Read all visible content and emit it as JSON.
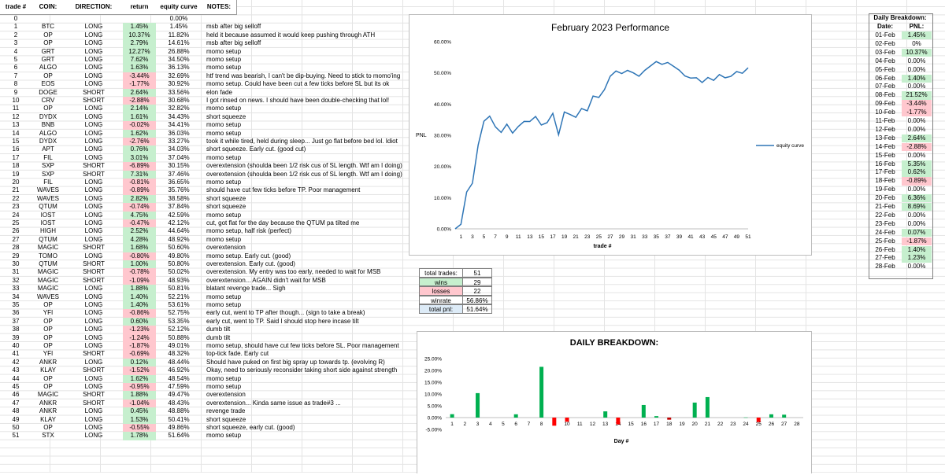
{
  "headers": {
    "trade": "trade #",
    "coin": "COIN:",
    "direction": "DIRECTION:",
    "return": "return",
    "equity": "equity curve",
    "notes": "NOTES:"
  },
  "trades": [
    {
      "n": "0",
      "coin": "",
      "dir": "",
      "ret": "",
      "eq": "0.00%",
      "note": "",
      "color": ""
    },
    {
      "n": "1",
      "coin": "BTC",
      "dir": "LONG",
      "ret": "1.45%",
      "eq": "1.45%",
      "note": "msb after big selloff",
      "color": "green"
    },
    {
      "n": "2",
      "coin": "OP",
      "dir": "LONG",
      "ret": "10.37%",
      "eq": "11.82%",
      "note": "held it because assumed it would keep pushing through ATH",
      "color": "green"
    },
    {
      "n": "3",
      "coin": "OP",
      "dir": "LONG",
      "ret": "2.79%",
      "eq": "14.61%",
      "note": "msb after big selloff",
      "color": "green"
    },
    {
      "n": "4",
      "coin": "GRT",
      "dir": "LONG",
      "ret": "12.27%",
      "eq": "26.88%",
      "note": "momo setup",
      "color": "green"
    },
    {
      "n": "5",
      "coin": "GRT",
      "dir": "LONG",
      "ret": "7.62%",
      "eq": "34.50%",
      "note": "momo setup",
      "color": "green"
    },
    {
      "n": "6",
      "coin": "ALGO",
      "dir": "LONG",
      "ret": "1.63%",
      "eq": "36.13%",
      "note": "momo setup",
      "color": "green"
    },
    {
      "n": "7",
      "coin": "OP",
      "dir": "LONG",
      "ret": "-3.44%",
      "eq": "32.69%",
      "note": "htf trend was bearish, I can't be dip-buying. Need to stick to momo'ing",
      "color": "red"
    },
    {
      "n": "8",
      "coin": "EOS",
      "dir": "LONG",
      "ret": "-1.77%",
      "eq": "30.92%",
      "note": "momo setup. Could have been cut a few ticks before SL but its ok",
      "color": "red"
    },
    {
      "n": "9",
      "coin": "DOGE",
      "dir": "SHORT",
      "ret": "2.64%",
      "eq": "33.56%",
      "note": "elon fade",
      "color": "green"
    },
    {
      "n": "10",
      "coin": "CRV",
      "dir": "SHORT",
      "ret": "-2.88%",
      "eq": "30.68%",
      "note": "I got rinsed on news. I should have been double-checking that lol!",
      "color": "red"
    },
    {
      "n": "11",
      "coin": "OP",
      "dir": "LONG",
      "ret": "2.14%",
      "eq": "32.82%",
      "note": "momo setup",
      "color": "green"
    },
    {
      "n": "12",
      "coin": "DYDX",
      "dir": "LONG",
      "ret": "1.61%",
      "eq": "34.43%",
      "note": "short squeeze",
      "color": "green"
    },
    {
      "n": "13",
      "coin": "BNB",
      "dir": "LONG",
      "ret": "-0.02%",
      "eq": "34.41%",
      "note": "momo setup",
      "color": "red"
    },
    {
      "n": "14",
      "coin": "ALGO",
      "dir": "LONG",
      "ret": "1.62%",
      "eq": "36.03%",
      "note": "momo setup",
      "color": "green"
    },
    {
      "n": "15",
      "coin": "DYDX",
      "dir": "LONG",
      "ret": "-2.76%",
      "eq": "33.27%",
      "note": "took it while tired, held during sleep... Just go flat before bed lol. Idiot",
      "color": "red"
    },
    {
      "n": "16",
      "coin": "APT",
      "dir": "LONG",
      "ret": "0.76%",
      "eq": "34.03%",
      "note": "short squeeze. Early cut. (good cut)",
      "color": "green"
    },
    {
      "n": "17",
      "coin": "FIL",
      "dir": "LONG",
      "ret": "3.01%",
      "eq": "37.04%",
      "note": "momo setup",
      "color": "green"
    },
    {
      "n": "18",
      "coin": "SXP",
      "dir": "SHORT",
      "ret": "-6.89%",
      "eq": "30.15%",
      "note": "overextension (shoulda been 1/2 risk cus of SL length. Wtf am I doing)",
      "color": "red"
    },
    {
      "n": "19",
      "coin": "SXP",
      "dir": "SHORT",
      "ret": "7.31%",
      "eq": "37.46%",
      "note": "overextension (shoulda been 1/2 risk cus of SL length. Wtf am I doing)",
      "color": "green"
    },
    {
      "n": "20",
      "coin": "FIL",
      "dir": "LONG",
      "ret": "-0.81%",
      "eq": "36.65%",
      "note": "momo setup",
      "color": "red"
    },
    {
      "n": "21",
      "coin": "WAVES",
      "dir": "LONG",
      "ret": "-0.89%",
      "eq": "35.76%",
      "note": "should have cut few ticks before TP. Poor management",
      "color": "red"
    },
    {
      "n": "22",
      "coin": "WAVES",
      "dir": "LONG",
      "ret": "2.82%",
      "eq": "38.58%",
      "note": "short squeeze",
      "color": "green"
    },
    {
      "n": "23",
      "coin": "QTUM",
      "dir": "LONG",
      "ret": "-0.74%",
      "eq": "37.84%",
      "note": "short squeeze",
      "color": "red"
    },
    {
      "n": "24",
      "coin": "IOST",
      "dir": "LONG",
      "ret": "4.75%",
      "eq": "42.59%",
      "note": "momo setup",
      "color": "green"
    },
    {
      "n": "25",
      "coin": "IOST",
      "dir": "LONG",
      "ret": "-0.47%",
      "eq": "42.12%",
      "note": "cut, got flat for the day because the QTUM pa tilted me",
      "color": "red"
    },
    {
      "n": "26",
      "coin": "HIGH",
      "dir": "LONG",
      "ret": "2.52%",
      "eq": "44.64%",
      "note": "momo setup, half risk (perfect)",
      "color": "green"
    },
    {
      "n": "27",
      "coin": "QTUM",
      "dir": "LONG",
      "ret": "4.28%",
      "eq": "48.92%",
      "note": "momo setup",
      "color": "green"
    },
    {
      "n": "28",
      "coin": "MAGIC",
      "dir": "SHORT",
      "ret": "1.68%",
      "eq": "50.60%",
      "note": "overextension",
      "color": "green"
    },
    {
      "n": "29",
      "coin": "TOMO",
      "dir": "LONG",
      "ret": "-0.80%",
      "eq": "49.80%",
      "note": "momo setup. Early cut. (good)",
      "color": "red"
    },
    {
      "n": "30",
      "coin": "QTUM",
      "dir": "SHORT",
      "ret": "1.00%",
      "eq": "50.80%",
      "note": "overextension. Early cut. (good)",
      "color": "green"
    },
    {
      "n": "31",
      "coin": "MAGIC",
      "dir": "SHORT",
      "ret": "-0.78%",
      "eq": "50.02%",
      "note": "overextension. My entry was too early, needed to wait for MSB",
      "color": "red"
    },
    {
      "n": "32",
      "coin": "MAGIC",
      "dir": "SHORT",
      "ret": "-1.09%",
      "eq": "48.93%",
      "note": "overextension... AGAIN didn't wait for MSB",
      "color": "red"
    },
    {
      "n": "33",
      "coin": "MAGIC",
      "dir": "LONG",
      "ret": "1.88%",
      "eq": "50.81%",
      "note": "blatant revenge trade... Sigh",
      "color": "green"
    },
    {
      "n": "34",
      "coin": "WAVES",
      "dir": "LONG",
      "ret": "1.40%",
      "eq": "52.21%",
      "note": "momo setup",
      "color": "green"
    },
    {
      "n": "35",
      "coin": "OP",
      "dir": "LONG",
      "ret": "1.40%",
      "eq": "53.61%",
      "note": "momo setup",
      "color": "green"
    },
    {
      "n": "36",
      "coin": "YFI",
      "dir": "LONG",
      "ret": "-0.86%",
      "eq": "52.75%",
      "note": "early cut, went to TP after though... (sign to take a break)",
      "color": "red"
    },
    {
      "n": "37",
      "coin": "OP",
      "dir": "LONG",
      "ret": "0.60%",
      "eq": "53.35%",
      "note": "early cut, went to TP. Said I should stop here incase tilt",
      "color": "green"
    },
    {
      "n": "38",
      "coin": "OP",
      "dir": "LONG",
      "ret": "-1.23%",
      "eq": "52.12%",
      "note": "dumb tilt",
      "color": "red"
    },
    {
      "n": "39",
      "coin": "OP",
      "dir": "LONG",
      "ret": "-1.24%",
      "eq": "50.88%",
      "note": "dumb tilt",
      "color": "red"
    },
    {
      "n": "40",
      "coin": "OP",
      "dir": "LONG",
      "ret": "-1.87%",
      "eq": "49.01%",
      "note": "momo setup, should have cut few ticks before SL. Poor management",
      "color": "red"
    },
    {
      "n": "41",
      "coin": "YFI",
      "dir": "SHORT",
      "ret": "-0.69%",
      "eq": "48.32%",
      "note": "top-tick fade. Early cut",
      "color": "red"
    },
    {
      "n": "42",
      "coin": "ANKR",
      "dir": "LONG",
      "ret": "0.12%",
      "eq": "48.44%",
      "note": "Should have puked on first big spray up towards tp. (evolving R)",
      "color": "green"
    },
    {
      "n": "43",
      "coin": "KLAY",
      "dir": "SHORT",
      "ret": "-1.52%",
      "eq": "46.92%",
      "note": "Okay, need to seriously reconsider taking short side against strength",
      "color": "red"
    },
    {
      "n": "44",
      "coin": "OP",
      "dir": "LONG",
      "ret": "1.62%",
      "eq": "48.54%",
      "note": "momo setup",
      "color": "green"
    },
    {
      "n": "45",
      "coin": "OP",
      "dir": "LONG",
      "ret": "-0.95%",
      "eq": "47.59%",
      "note": "momo setup",
      "color": "red"
    },
    {
      "n": "46",
      "coin": "MAGIC",
      "dir": "SHORT",
      "ret": "1.88%",
      "eq": "49.47%",
      "note": "overextension",
      "color": "green"
    },
    {
      "n": "47",
      "coin": "ANKR",
      "dir": "SHORT",
      "ret": "-1.04%",
      "eq": "48.43%",
      "note": "overextension... Kinda same issue as trade#3 ...",
      "color": "red"
    },
    {
      "n": "48",
      "coin": "ANKR",
      "dir": "LONG",
      "ret": "0.45%",
      "eq": "48.88%",
      "note": "revenge trade",
      "color": "green"
    },
    {
      "n": "49",
      "coin": "KLAY",
      "dir": "LONG",
      "ret": "1.53%",
      "eq": "50.41%",
      "note": "short squeeze",
      "color": "green"
    },
    {
      "n": "50",
      "coin": "OP",
      "dir": "LONG",
      "ret": "-0.55%",
      "eq": "49.86%",
      "note": "short squeeze, early cut. (good)",
      "color": "red"
    },
    {
      "n": "51",
      "coin": "STX",
      "dir": "LONG",
      "ret": "1.78%",
      "eq": "51.64%",
      "note": "momo setup",
      "color": "green"
    }
  ],
  "stats": [
    {
      "label": "total trades:",
      "value": "51",
      "label_bg": "#ffffff"
    },
    {
      "label": "wins",
      "value": "29",
      "label_bg": "#c6efce"
    },
    {
      "label": "losses",
      "value": "22",
      "label_bg": "#ffc7ce"
    },
    {
      "label": "winrate",
      "value": "56.86%",
      "label_bg": "#ffffff"
    },
    {
      "label": "total pnl:",
      "value": "51.64%",
      "label_bg": "#ddebf7"
    }
  ],
  "daily": {
    "title": "Daily Breakdown:",
    "date_header": "Date:",
    "pnl_header": "PNL:",
    "rows": [
      {
        "date": "01-Feb",
        "pnl": "1.45%",
        "color": "green"
      },
      {
        "date": "02-Feb",
        "pnl": "0%",
        "color": ""
      },
      {
        "date": "03-Feb",
        "pnl": "10.37%",
        "color": "green"
      },
      {
        "date": "04-Feb",
        "pnl": "0.00%",
        "color": ""
      },
      {
        "date": "05-Feb",
        "pnl": "0.00%",
        "color": ""
      },
      {
        "date": "06-Feb",
        "pnl": "1.40%",
        "color": "green"
      },
      {
        "date": "07-Feb",
        "pnl": "0.00%",
        "color": ""
      },
      {
        "date": "08-Feb",
        "pnl": "21.52%",
        "color": "green"
      },
      {
        "date": "09-Feb",
        "pnl": "-3.44%",
        "color": "red"
      },
      {
        "date": "10-Feb",
        "pnl": "-1.77%",
        "color": "red"
      },
      {
        "date": "11-Feb",
        "pnl": "0.00%",
        "color": ""
      },
      {
        "date": "12-Feb",
        "pnl": "0.00%",
        "color": ""
      },
      {
        "date": "13-Feb",
        "pnl": "2.64%",
        "color": "green"
      },
      {
        "date": "14-Feb",
        "pnl": "-2.88%",
        "color": "red"
      },
      {
        "date": "15-Feb",
        "pnl": "0.00%",
        "color": ""
      },
      {
        "date": "16-Feb",
        "pnl": "5.35%",
        "color": "green"
      },
      {
        "date": "17-Feb",
        "pnl": "0.62%",
        "color": "green"
      },
      {
        "date": "18-Feb",
        "pnl": "-0.89%",
        "color": "red"
      },
      {
        "date": "19-Feb",
        "pnl": "0.00%",
        "color": ""
      },
      {
        "date": "20-Feb",
        "pnl": "6.36%",
        "color": "green"
      },
      {
        "date": "21-Feb",
        "pnl": "8.69%",
        "color": "green"
      },
      {
        "date": "22-Feb",
        "pnl": "0.00%",
        "color": ""
      },
      {
        "date": "23-Feb",
        "pnl": "0.00%",
        "color": ""
      },
      {
        "date": "24-Feb",
        "pnl": "0.07%",
        "color": "green"
      },
      {
        "date": "25-Feb",
        "pnl": "-1.87%",
        "color": "red"
      },
      {
        "date": "26-Feb",
        "pnl": "1.40%",
        "color": "green"
      },
      {
        "date": "27-Feb",
        "pnl": "1.23%",
        "color": "green"
      },
      {
        "date": "28-Feb",
        "pnl": "0.00%",
        "color": ""
      }
    ]
  },
  "colors": {
    "green_fill": "#c6efce",
    "red_fill": "#ffc7ce",
    "line": "#2e75b6",
    "bar_pos": "#00b050",
    "bar_neg": "#ff0000",
    "bar_neg_dark": "#c00000"
  },
  "chart_data": [
    {
      "type": "line",
      "title": "February 2023 Performance",
      "xlabel": "trade #",
      "ylabel": "PNL",
      "legend": "equity curve",
      "legend_position": "right",
      "ylim": [
        0,
        60
      ],
      "y_ticks": [
        "0.00%",
        "10.00%",
        "20.00%",
        "30.00%",
        "40.00%",
        "50.00%",
        "60.00%"
      ],
      "x_ticks": [
        "1",
        "3",
        "5",
        "7",
        "9",
        "11",
        "13",
        "15",
        "17",
        "19",
        "21",
        "23",
        "25",
        "27",
        "29",
        "31",
        "33",
        "35",
        "37",
        "39",
        "41",
        "43",
        "45",
        "47",
        "49",
        "51"
      ],
      "x": [
        0,
        1,
        2,
        3,
        4,
        5,
        6,
        7,
        8,
        9,
        10,
        11,
        12,
        13,
        14,
        15,
        16,
        17,
        18,
        19,
        20,
        21,
        22,
        23,
        24,
        25,
        26,
        27,
        28,
        29,
        30,
        31,
        32,
        33,
        34,
        35,
        36,
        37,
        38,
        39,
        40,
        41,
        42,
        43,
        44,
        45,
        46,
        47,
        48,
        49,
        50,
        51
      ],
      "series": [
        {
          "name": "equity curve",
          "values": [
            0,
            1.45,
            11.82,
            14.61,
            26.88,
            34.5,
            36.13,
            32.69,
            30.92,
            33.56,
            30.68,
            32.82,
            34.43,
            34.41,
            36.03,
            33.27,
            34.03,
            37.04,
            30.15,
            37.46,
            36.65,
            35.76,
            38.58,
            37.84,
            42.59,
            42.12,
            44.64,
            48.92,
            50.6,
            49.8,
            50.8,
            50.02,
            48.93,
            50.81,
            52.21,
            53.61,
            52.75,
            53.35,
            52.12,
            50.88,
            49.01,
            48.32,
            48.44,
            46.92,
            48.54,
            47.59,
            49.47,
            48.43,
            48.88,
            50.41,
            49.86,
            51.64
          ]
        }
      ],
      "grid": "horizontal"
    },
    {
      "type": "bar",
      "title": "DAILY BREAKDOWN:",
      "xlabel": "Day #",
      "ylabel": "",
      "ylim": [
        -5,
        25
      ],
      "y_ticks": [
        "-5.00%",
        "0.00%",
        "5.00%",
        "10.00%",
        "15.00%",
        "20.00%",
        "25.00%"
      ],
      "categories": [
        "1",
        "2",
        "3",
        "4",
        "5",
        "6",
        "7",
        "8",
        "9",
        "10",
        "11",
        "12",
        "13",
        "14",
        "15",
        "16",
        "17",
        "18",
        "19",
        "20",
        "21",
        "22",
        "23",
        "24",
        "25",
        "26",
        "27",
        "28"
      ],
      "values": [
        1.45,
        0,
        10.37,
        0,
        0,
        1.4,
        0,
        21.52,
        -3.44,
        -1.77,
        0,
        0,
        2.64,
        -2.88,
        0,
        5.35,
        0.62,
        -0.89,
        0,
        6.36,
        8.69,
        0,
        0,
        0.07,
        -1.87,
        1.4,
        1.23,
        0
      ],
      "grid": "horizontal"
    }
  ]
}
